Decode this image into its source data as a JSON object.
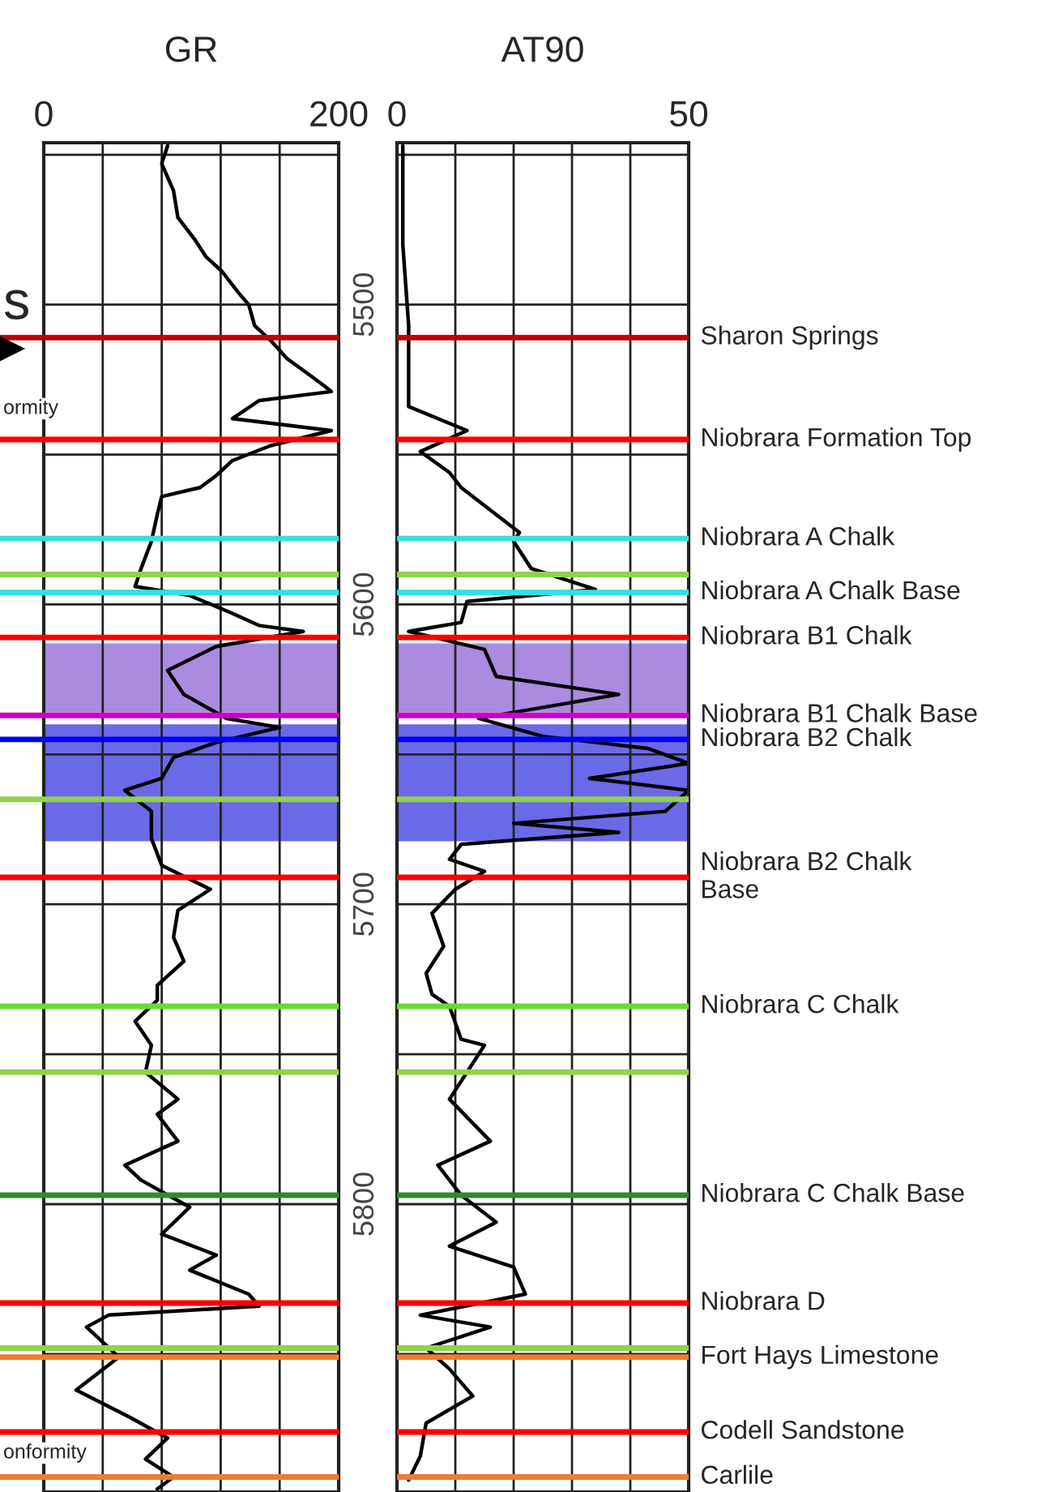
{
  "chart_data": [
    {
      "type": "line",
      "title": "GR",
      "xlim": [
        0,
        200
      ],
      "xticks": [
        0,
        {
          "value": 40,
          "label": null
        },
        {
          "value": 80,
          "label": null
        },
        {
          "value": 120,
          "label": null
        },
        {
          "value": 160,
          "label": null
        },
        200
      ],
      "ylim": [
        5896,
        5446
      ],
      "yticks": [
        {
          "value": 5450,
          "label": null
        },
        5500,
        {
          "value": 5550,
          "label": null
        },
        5600,
        {
          "value": 5650,
          "label": null
        },
        5700,
        {
          "value": 5750,
          "label": null
        },
        5800,
        {
          "value": 5850,
          "label": null
        }
      ],
      "grid": true,
      "annotations": [
        "s",
        "ormity",
        "onformity"
      ],
      "ref_lines": [
        {
          "axis": "y",
          "value": 5511,
          "color": "#c00000"
        },
        {
          "axis": "y",
          "value": 5545,
          "color": "#ff0000"
        },
        {
          "axis": "y",
          "value": 5578,
          "color": "#33e0e0"
        },
        {
          "axis": "y",
          "value": 5590,
          "color": "#92d050"
        },
        {
          "axis": "y",
          "value": 5596,
          "color": "#33e0e0"
        },
        {
          "axis": "y",
          "value": 5611,
          "color": "#ff0000"
        },
        {
          "axis": "y",
          "value": 5637,
          "color": "#cc00cc"
        },
        {
          "axis": "y",
          "value": 5645,
          "color": "#0000ff"
        },
        {
          "axis": "y",
          "value": 5665,
          "color": "#92d050"
        },
        {
          "axis": "y",
          "value": 5691,
          "color": "#ff0000"
        },
        {
          "axis": "y",
          "value": 5734,
          "color": "#66dd33"
        },
        {
          "axis": "y",
          "value": 5756,
          "color": "#92d050"
        },
        {
          "axis": "y",
          "value": 5797,
          "color": "#2e8b2e"
        },
        {
          "axis": "y",
          "value": 5833,
          "color": "#ff0000"
        },
        {
          "axis": "y",
          "value": 5848,
          "color": "#92d050"
        },
        {
          "axis": "y",
          "value": 5851,
          "color": "#ed7d31"
        },
        {
          "axis": "y",
          "value": 5876,
          "color": "#ff0000"
        },
        {
          "axis": "y",
          "value": 5891,
          "color": "#ed7d31"
        }
      ],
      "bands": [
        {
          "axis": "y",
          "from": 5613,
          "to": 5636,
          "color": "#a98be0"
        },
        {
          "axis": "y",
          "from": 5640,
          "to": 5679,
          "color": "#6a6ae8"
        }
      ],
      "series": [
        {
          "color": "#000000",
          "x": [
            84,
            80,
            88,
            91,
            102,
            110,
            121,
            132,
            139,
            143,
            154,
            165,
            179,
            190,
            195,
            146,
            128,
            195,
            154,
            128,
            117,
            106,
            80,
            77,
            73,
            66,
            62,
            99,
            128,
            146,
            176,
            117,
            84,
            95,
            124,
            160,
            117,
            88,
            80,
            55,
            73,
            73,
            80,
            113,
            91,
            88,
            95,
            77,
            77,
            62,
            73,
            69,
            91,
            77,
            91,
            55,
            66,
            99,
            80,
            117,
            99,
            139,
            146,
            44,
            29,
            51,
            22,
            58,
            84,
            69,
            88,
            77
          ],
          "values": [
            5447,
            5453,
            5462,
            5471,
            5478,
            5484,
            5489,
            5496,
            5500,
            5507,
            5512,
            5518,
            5523,
            5527,
            5529,
            5532,
            5538,
            5542,
            5547,
            5552,
            5557,
            5561,
            5564,
            5570,
            5579,
            5588,
            5594,
            5597,
            5603,
            5607,
            5609,
            5614,
            5622,
            5630,
            5638,
            5641,
            5646,
            5651,
            5658,
            5662,
            5669,
            5678,
            5687,
            5695,
            5702,
            5711,
            5719,
            5727,
            5732,
            5739,
            5747,
            5756,
            5765,
            5770,
            5779,
            5787,
            5792,
            5801,
            5810,
            5817,
            5822,
            5830,
            5834,
            5837,
            5841,
            5851,
            5862,
            5871,
            5878,
            5885,
            5891,
            5895
          ]
        }
      ]
    },
    {
      "type": "line",
      "title": "AT90",
      "xlim": [
        0,
        50
      ],
      "xticks": [
        0,
        {
          "value": 10,
          "label": null
        },
        {
          "value": 20,
          "label": null
        },
        {
          "value": 30,
          "label": null
        },
        {
          "value": 40,
          "label": null
        },
        50
      ],
      "ylim": [
        5896,
        5446
      ],
      "yticks": [
        {
          "value": 5450,
          "label": null
        },
        {
          "value": 5500,
          "label": null
        },
        {
          "value": 5550,
          "label": null
        },
        {
          "value": 5600,
          "label": null
        },
        {
          "value": 5650,
          "label": null
        },
        {
          "value": 5700,
          "label": null
        },
        {
          "value": 5750,
          "label": null
        },
        {
          "value": 5800,
          "label": null
        },
        {
          "value": 5850,
          "label": null
        }
      ],
      "grid": true,
      "tick_labels": "x",
      "bands": [
        {
          "axis": "y",
          "from": 5613,
          "to": 5636,
          "color": "#a98be0"
        },
        {
          "axis": "y",
          "from": 5640,
          "to": 5679,
          "color": "#6a6ae8"
        }
      ],
      "ref_lines": [
        {
          "axis": "y",
          "value": 5511,
          "label": "Sharon Springs",
          "color": "#c00000"
        },
        {
          "axis": "y",
          "value": 5545,
          "label": "Niobrara Formation Top",
          "color": "#ff0000"
        },
        {
          "axis": "y",
          "value": 5578,
          "label": "Niobrara A Chalk",
          "color": "#33e0e0"
        },
        {
          "axis": "y",
          "value": 5590,
          "color": "#92d050"
        },
        {
          "axis": "y",
          "value": 5596,
          "label": "Niobrara A Chalk Base",
          "color": "#33e0e0"
        },
        {
          "axis": "y",
          "value": 5611,
          "label": "Niobrara B1 Chalk",
          "color": "#ff0000"
        },
        {
          "axis": "y",
          "value": 5637,
          "label": "Niobrara B1 Chalk Base",
          "color": "#cc00cc"
        },
        {
          "axis": "y",
          "value": 5645,
          "label": "Niobrara B2 Chalk",
          "color": "#0000ff"
        },
        {
          "axis": "y",
          "value": 5665,
          "color": "#92d050"
        },
        {
          "axis": "y",
          "value": 5691,
          "label": "Niobrara B2 Chalk\nBase",
          "color": "#ff0000"
        },
        {
          "axis": "y",
          "value": 5734,
          "label": "Niobrara C Chalk",
          "color": "#66dd33"
        },
        {
          "axis": "y",
          "value": 5756,
          "color": "#92d050"
        },
        {
          "axis": "y",
          "value": 5797,
          "label": "Niobrara C Chalk Base",
          "color": "#2e8b2e"
        },
        {
          "axis": "y",
          "value": 5833,
          "label": "Niobrara D",
          "color": "#ff0000"
        },
        {
          "axis": "y",
          "value": 5848,
          "color": "#92d050"
        },
        {
          "axis": "y",
          "value": 5851,
          "label": "Fort Hays Limestone",
          "color": "#ed7d31"
        },
        {
          "axis": "y",
          "value": 5876,
          "label": "Codell Sandstone",
          "color": "#ff0000"
        },
        {
          "axis": "y",
          "value": 5891,
          "label": "Carlile",
          "color": "#ed7d31"
        }
      ],
      "series": [
        {
          "color": "#000000",
          "x": [
            1,
            1,
            2,
            2,
            12,
            4,
            9,
            11,
            15,
            21,
            20,
            23,
            34,
            12,
            11,
            2,
            15,
            17,
            38,
            23,
            14,
            25,
            43,
            50,
            33,
            50,
            46,
            20,
            38,
            11,
            9,
            15,
            10,
            6,
            8,
            5,
            6,
            9,
            11,
            15,
            9,
            16,
            7,
            11,
            17,
            9,
            20,
            22,
            4,
            16,
            5,
            9,
            13,
            5,
            4,
            2
          ],
          "values": [
            5447,
            5480,
            5507,
            5534,
            5542,
            5549,
            5556,
            5561,
            5567,
            5576,
            5579,
            5588,
            5595,
            5599,
            5606,
            5609,
            5615,
            5624,
            5630,
            5635,
            5638,
            5644,
            5648,
            5653,
            5658,
            5662,
            5669,
            5673,
            5676,
            5680,
            5685,
            5689,
            5695,
            5703,
            5714,
            5723,
            5730,
            5734,
            5745,
            5747,
            5765,
            5779,
            5787,
            5797,
            5806,
            5814,
            5821,
            5830,
            5837,
            5841,
            5848,
            5855,
            5864,
            5873,
            5884,
            5892
          ]
        }
      ]
    }
  ]
}
